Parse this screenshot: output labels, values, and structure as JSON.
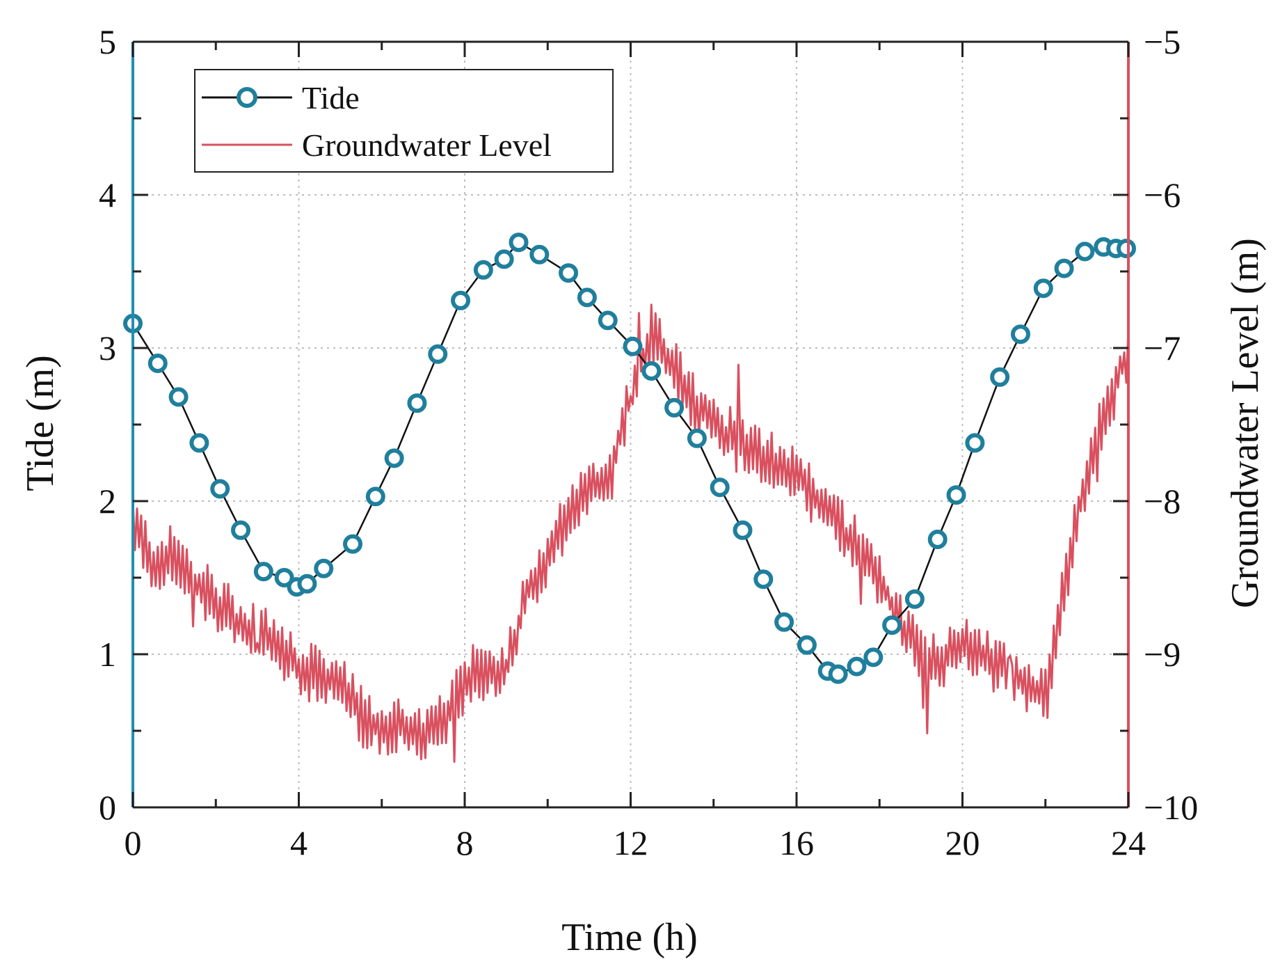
{
  "colors": {
    "tide_marker": "#1f7f9c",
    "tide_line": "#111111",
    "groundwater": "#d9505f",
    "left_axis": "#1f8fb0",
    "right_axis": "#d9505f",
    "grid": "#bdbdbd"
  },
  "chart_data": {
    "type": "line",
    "title": "",
    "xlabel": "Time (h)",
    "ylabel_left": "Tide (m)",
    "ylabel_right": "Groundwater Level (m)",
    "xlim": [
      0,
      24
    ],
    "ylim_left": [
      0,
      5
    ],
    "ylim_right": [
      -10,
      -5
    ],
    "x_ticks": [
      "0",
      "4",
      "8",
      "12",
      "16",
      "20",
      "24"
    ],
    "y_left_ticks": [
      "0",
      "1",
      "2",
      "3",
      "4",
      "5"
    ],
    "y_right_ticks": [
      "−10",
      "−9",
      "−8",
      "−7",
      "−6",
      "−5"
    ],
    "grid": true,
    "legend_position": "top-left",
    "legend": [
      "Tide",
      "Groundwater Level"
    ],
    "series": [
      {
        "name": "Tide",
        "axis": "left",
        "marker": "circle",
        "x": [
          0,
          0.6,
          1.1,
          1.6,
          2.1,
          2.6,
          3.15,
          3.65,
          3.95,
          4.2,
          4.6,
          5.3,
          5.85,
          6.3,
          6.85,
          7.35,
          7.9,
          8.45,
          8.95,
          9.3,
          9.8,
          10.5,
          10.95,
          11.45,
          12.05,
          12.5,
          13.05,
          13.6,
          14.15,
          14.7,
          15.2,
          15.7,
          16.25,
          16.75,
          17.0,
          17.45,
          17.85,
          18.3,
          18.85,
          19.4,
          19.85,
          20.3,
          20.9,
          21.4,
          21.95,
          22.45,
          22.95,
          23.4,
          23.7,
          23.95
        ],
        "values": [
          3.16,
          2.9,
          2.68,
          2.38,
          2.08,
          1.81,
          1.54,
          1.5,
          1.44,
          1.46,
          1.56,
          1.72,
          2.03,
          2.28,
          2.64,
          2.96,
          3.31,
          3.51,
          3.58,
          3.69,
          3.61,
          3.49,
          3.33,
          3.18,
          3.01,
          2.85,
          2.61,
          2.41,
          2.09,
          1.81,
          1.49,
          1.21,
          1.06,
          0.89,
          0.87,
          0.92,
          0.98,
          1.19,
          1.36,
          1.75,
          2.04,
          2.38,
          2.81,
          3.09,
          3.39,
          3.52,
          3.63,
          3.66,
          3.65,
          3.65
        ]
      },
      {
        "name": "Groundwater Level",
        "axis": "right",
        "x": [
          0,
          0.5,
          1,
          1.5,
          2,
          2.5,
          3,
          3.5,
          4,
          4.5,
          5,
          5.5,
          6,
          6.5,
          7,
          7.5,
          8,
          8.5,
          9,
          9.5,
          10,
          10.5,
          11,
          11.5,
          12,
          12.5,
          13,
          13.5,
          14,
          14.5,
          15,
          15.5,
          16,
          16.5,
          17,
          17.5,
          18,
          18.5,
          19,
          19.5,
          20,
          20.5,
          21,
          21.5,
          22,
          22.5,
          23,
          23.5,
          24
        ],
        "values": [
          -8.15,
          -8.4,
          -8.35,
          -8.55,
          -8.65,
          -8.8,
          -8.85,
          -8.95,
          -9.1,
          -9.15,
          -9.2,
          -9.4,
          -9.5,
          -9.45,
          -9.55,
          -9.45,
          -9.2,
          -9.15,
          -9.1,
          -8.6,
          -8.35,
          -8.1,
          -7.95,
          -7.85,
          -7.3,
          -6.9,
          -7.1,
          -7.35,
          -7.45,
          -7.6,
          -7.7,
          -7.75,
          -7.8,
          -8.0,
          -8.15,
          -8.3,
          -8.5,
          -8.8,
          -9.0,
          -9.05,
          -8.95,
          -9.0,
          -9.1,
          -9.2,
          -9.3,
          -8.5,
          -7.8,
          -7.4,
          -7.0
        ]
      }
    ]
  }
}
